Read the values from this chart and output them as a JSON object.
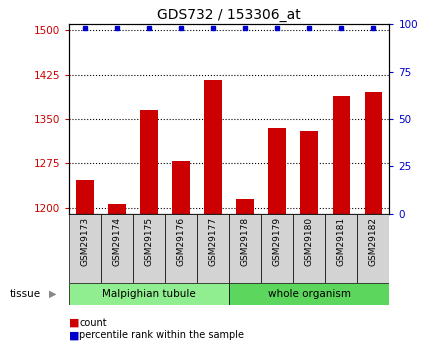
{
  "title": "GDS732 / 153306_at",
  "samples": [
    "GSM29173",
    "GSM29174",
    "GSM29175",
    "GSM29176",
    "GSM29177",
    "GSM29178",
    "GSM29179",
    "GSM29180",
    "GSM29181",
    "GSM29182"
  ],
  "counts": [
    1248,
    1207,
    1365,
    1280,
    1415,
    1215,
    1335,
    1330,
    1388,
    1395
  ],
  "percentiles": [
    100,
    100,
    100,
    100,
    100,
    100,
    100,
    100,
    100,
    100
  ],
  "tissue_groups": [
    {
      "label": "Malpighian tubule",
      "start": 0,
      "end": 5,
      "color": "#90EE90"
    },
    {
      "label": "whole organism",
      "start": 5,
      "end": 10,
      "color": "#5CD65C"
    }
  ],
  "bar_color": "#CC0000",
  "dot_color": "#0000CC",
  "ylim_left": [
    1190,
    1510
  ],
  "ylim_right": [
    0,
    100
  ],
  "yticks_left": [
    1200,
    1275,
    1350,
    1425,
    1500
  ],
  "yticks_right": [
    0,
    25,
    50,
    75,
    100
  ],
  "bg_color": "#FFFFFF",
  "bar_bg_color": "#D3D3D3",
  "plot_bg_color": "#FFFFFF",
  "legend_count_color": "#CC0000",
  "legend_percentile_color": "#0000CC",
  "tissue_label": "tissue"
}
